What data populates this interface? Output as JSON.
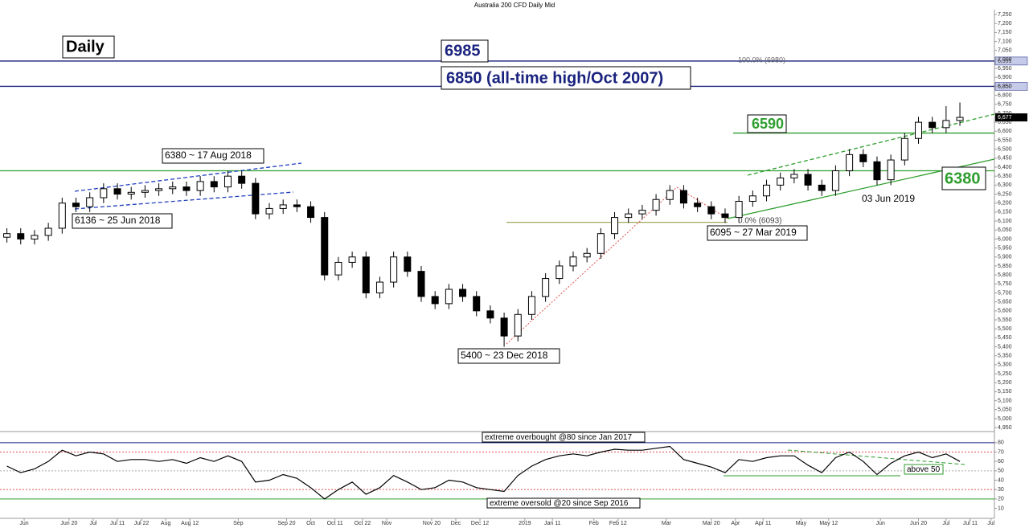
{
  "chart_data": [
    {
      "type": "candlestick",
      "title": "Australia 200 CFD Daily Mid",
      "x": [
        2,
        6,
        10,
        14,
        18,
        22,
        26,
        30,
        34,
        38,
        42,
        46,
        50,
        54,
        58,
        62,
        66,
        70,
        74,
        78,
        82,
        86,
        90,
        94,
        98,
        102,
        106,
        110,
        114,
        118,
        122,
        126,
        130,
        134,
        138,
        142,
        146,
        150,
        154,
        158,
        162,
        166,
        170,
        174,
        178,
        182,
        186,
        190,
        194,
        198,
        202,
        206,
        210,
        214,
        218,
        222,
        226,
        230,
        234,
        238,
        242,
        246,
        250,
        254,
        258,
        262,
        266,
        270,
        274,
        278
      ],
      "open": [
        6010,
        6030,
        6000,
        6020,
        6060,
        6200,
        6180,
        6230,
        6280,
        6250,
        6260,
        6270,
        6280,
        6290,
        6270,
        6320,
        6290,
        6350,
        6310,
        6140,
        6170,
        6190,
        6180,
        6120,
        5800,
        5870,
        5900,
        5700,
        5760,
        5900,
        5820,
        5680,
        5640,
        5720,
        5680,
        5600,
        5560,
        5460,
        5580,
        5680,
        5780,
        5850,
        5900,
        5920,
        6030,
        6120,
        6140,
        6160,
        6220,
        6270,
        6200,
        6180,
        6140,
        6120,
        6210,
        6240,
        6300,
        6340,
        6360,
        6300,
        6270,
        6380,
        6470,
        6430,
        6330,
        6440,
        6560,
        6650,
        6620,
        6660
      ],
      "high": [
        6060,
        6060,
        6050,
        6090,
        6230,
        6230,
        6260,
        6310,
        6310,
        6290,
        6300,
        6310,
        6320,
        6320,
        6350,
        6350,
        6380,
        6380,
        6340,
        6200,
        6220,
        6220,
        6210,
        6150,
        5900,
        5930,
        5930,
        5790,
        5930,
        5930,
        5850,
        5710,
        5750,
        5750,
        5710,
        5630,
        5590,
        5610,
        5710,
        5810,
        5880,
        5930,
        5950,
        6060,
        6150,
        6170,
        6190,
        6250,
        6300,
        6300,
        6230,
        6210,
        6170,
        6240,
        6270,
        6330,
        6370,
        6390,
        6390,
        6330,
        6410,
        6500,
        6500,
        6460,
        6470,
        6590,
        6680,
        6680,
        6740,
        6760
      ],
      "low": [
        5980,
        5970,
        5970,
        5990,
        6030,
        6150,
        6150,
        6200,
        6220,
        6220,
        6230,
        6240,
        6250,
        6240,
        6240,
        6260,
        6260,
        6280,
        6110,
        6110,
        6140,
        6150,
        6090,
        5770,
        5770,
        5840,
        5670,
        5670,
        5730,
        5790,
        5650,
        5610,
        5610,
        5650,
        5570,
        5530,
        5400,
        5430,
        5550,
        5650,
        5750,
        5820,
        5870,
        5890,
        6000,
        6090,
        6110,
        6130,
        6190,
        6170,
        6150,
        6110,
        6090,
        6090,
        6180,
        6210,
        6270,
        6310,
        6270,
        6240,
        6240,
        6350,
        6400,
        6300,
        6300,
        6410,
        6530,
        6590,
        6590,
        6630
      ],
      "close": [
        6030,
        6000,
        6020,
        6060,
        6200,
        6180,
        6230,
        6280,
        6250,
        6260,
        6270,
        6280,
        6290,
        6270,
        6320,
        6290,
        6350,
        6310,
        6140,
        6170,
        6190,
        6180,
        6120,
        5800,
        5870,
        5900,
        5700,
        5760,
        5900,
        5820,
        5680,
        5640,
        5720,
        5680,
        5600,
        5560,
        5460,
        5580,
        5680,
        5780,
        5850,
        5900,
        5920,
        6030,
        6120,
        6140,
        6160,
        6220,
        6270,
        6200,
        6180,
        6140,
        6120,
        6210,
        6240,
        6300,
        6340,
        6360,
        6300,
        6270,
        6380,
        6470,
        6430,
        6330,
        6440,
        6560,
        6650,
        6620,
        6660,
        6677
      ],
      "xlim": [
        0,
        288
      ],
      "xticks": [
        {
          "value": 7,
          "label": "Jun"
        },
        {
          "value": 20,
          "label": "Jun 20"
        },
        {
          "value": 27,
          "label": "Jul"
        },
        {
          "value": 34,
          "label": "Jul 11"
        },
        {
          "value": 41,
          "label": "Jul 22"
        },
        {
          "value": 48,
          "label": "Aug"
        },
        {
          "value": 55,
          "label": "Aug 12"
        },
        {
          "value": 69,
          "label": "Sep"
        },
        {
          "value": 83,
          "label": "Sep 20"
        },
        {
          "value": 90,
          "label": "Oct"
        },
        {
          "value": 97,
          "label": "Oct 11"
        },
        {
          "value": 105,
          "label": "Oct 22"
        },
        {
          "value": 112,
          "label": "Nov"
        },
        {
          "value": 125,
          "label": "Nov 20"
        },
        {
          "value": 132,
          "label": "Dec"
        },
        {
          "value": 139,
          "label": "Dec 12"
        },
        {
          "value": 152,
          "label": "2019"
        },
        {
          "value": 160,
          "label": "Jan 11"
        },
        {
          "value": 172,
          "label": "Feb"
        },
        {
          "value": 179,
          "label": "Feb 12"
        },
        {
          "value": 193,
          "label": "Mar"
        },
        {
          "value": 206,
          "label": "Mar 20"
        },
        {
          "value": 213,
          "label": "Apr"
        },
        {
          "value": 221,
          "label": "Apr 11"
        },
        {
          "value": 232,
          "label": "May"
        },
        {
          "value": 240,
          "label": "May 12"
        },
        {
          "value": 255,
          "label": "Jun"
        },
        {
          "value": 266,
          "label": "Jun 20"
        },
        {
          "value": 274,
          "label": "Jul"
        },
        {
          "value": 281,
          "label": "Jul 11"
        },
        {
          "value": 287,
          "label": "Jul"
        }
      ],
      "ylim": [
        4928,
        7277
      ],
      "yticks": [
        {
          "value": 4950,
          "label": "4,950"
        },
        {
          "value": 5000,
          "label": "5,000"
        },
        {
          "value": 5050,
          "label": "5,050"
        },
        {
          "value": 5100,
          "label": "5,100"
        },
        {
          "value": 5150,
          "label": "5,150"
        },
        {
          "value": 5200,
          "label": "5,200"
        },
        {
          "value": 5250,
          "label": "5,250"
        },
        {
          "value": 5300,
          "label": "5,300"
        },
        {
          "value": 5350,
          "label": "5,350"
        },
        {
          "value": 5400,
          "label": "5,400"
        },
        {
          "value": 5450,
          "label": "5,450"
        },
        {
          "value": 5500,
          "label": "5,500"
        },
        {
          "value": 5550,
          "label": "5,550"
        },
        {
          "value": 5600,
          "label": "5,600"
        },
        {
          "value": 5650,
          "label": "5,650"
        },
        {
          "value": 5700,
          "label": "5,700"
        },
        {
          "value": 5750,
          "label": "5,750"
        },
        {
          "value": 5800,
          "label": "5,800"
        },
        {
          "value": 5850,
          "label": "5,850"
        },
        {
          "value": 5900,
          "label": "5,900"
        },
        {
          "value": 5950,
          "label": "5,950"
        },
        {
          "value": 6000,
          "label": "6,000"
        },
        {
          "value": 6050,
          "label": "6,050"
        },
        {
          "value": 6100,
          "label": "6,100"
        },
        {
          "value": 6150,
          "label": "6,150"
        },
        {
          "value": 6200,
          "label": "6,200"
        },
        {
          "value": 6250,
          "label": "6,250"
        },
        {
          "value": 6300,
          "label": "6,300"
        },
        {
          "value": 6350,
          "label": "6,350"
        },
        {
          "value": 6400,
          "label": "6,400"
        },
        {
          "value": 6450,
          "label": "6,450"
        },
        {
          "value": 6500,
          "label": "6,500"
        },
        {
          "value": 6550,
          "label": "6,550"
        },
        {
          "value": 6600,
          "label": "6,600"
        },
        {
          "value": 6650,
          "label": "6,650"
        },
        {
          "value": 6700,
          "label": "6,700"
        },
        {
          "value": 6750,
          "label": "6,750"
        },
        {
          "value": 6800,
          "label": "6,800"
        },
        {
          "value": 6850,
          "label": "6,850"
        },
        {
          "value": 6900,
          "label": "6,900"
        },
        {
          "value": 6950,
          "label": "6,950"
        },
        {
          "value": 7000,
          "label": "7,000"
        },
        {
          "value": 7050,
          "label": "7,050"
        },
        {
          "value": 7100,
          "label": "7,100"
        },
        {
          "value": 7150,
          "label": "7,150"
        },
        {
          "value": 7200,
          "label": "7,200"
        },
        {
          "value": 7250,
          "label": "7,250"
        }
      ],
      "levels": [
        {
          "value": 6991,
          "label": "6,991",
          "color": "#1a237e"
        },
        {
          "value": 6850,
          "label": "6,850",
          "color": "#1a237e"
        },
        {
          "value": 6590,
          "color": "#2e9e2e"
        },
        {
          "value": 6380,
          "color": "#2e9e2e"
        },
        {
          "value": 6093,
          "color": "#a0a85a"
        }
      ],
      "last_price": {
        "value": 6677,
        "label": "6,677"
      },
      "up_color": "#ffffff",
      "down_color": "#000000",
      "annotations": [
        "Daily",
        "6985",
        "6850 (all-time high/Oct 2007)",
        "100.0% (6980)",
        "6590",
        "6380",
        "6380 ~ 17 Aug 2018",
        "6136 ~ 25 Jun 2018",
        "5400 ~ 23 Dec 2018",
        "6095 ~ 27 Mar 2019",
        "0.0% (6093)",
        "03 Jun 2019"
      ]
    },
    {
      "type": "line",
      "x": [
        2,
        6,
        10,
        14,
        18,
        22,
        26,
        30,
        34,
        38,
        42,
        46,
        50,
        54,
        58,
        62,
        66,
        70,
        74,
        78,
        82,
        86,
        90,
        94,
        98,
        102,
        106,
        110,
        114,
        118,
        122,
        126,
        130,
        134,
        138,
        142,
        146,
        150,
        154,
        158,
        162,
        166,
        170,
        174,
        178,
        182,
        186,
        190,
        194,
        198,
        202,
        206,
        210,
        214,
        218,
        222,
        226,
        230,
        234,
        238,
        242,
        246,
        250,
        254,
        258,
        262,
        266,
        270,
        274,
        278
      ],
      "values": [
        55,
        48,
        52,
        60,
        72,
        66,
        70,
        68,
        60,
        62,
        62,
        60,
        62,
        58,
        64,
        60,
        66,
        60,
        38,
        40,
        46,
        42,
        32,
        20,
        30,
        38,
        25,
        32,
        45,
        38,
        30,
        32,
        40,
        38,
        32,
        30,
        28,
        45,
        55,
        62,
        66,
        68,
        66,
        70,
        73,
        72,
        72,
        74,
        76,
        62,
        58,
        54,
        48,
        62,
        60,
        64,
        66,
        66,
        56,
        48,
        64,
        70,
        60,
        46,
        58,
        66,
        70,
        64,
        68,
        60
      ],
      "color": "#000000",
      "xlim": [
        0,
        288
      ],
      "ylim": [
        1,
        91
      ],
      "yticks": [
        10,
        20,
        30,
        40,
        50,
        60,
        70,
        80
      ],
      "levels": [
        {
          "value": 80,
          "color": "#1a237e"
        },
        {
          "value": 70,
          "color": "#e05050"
        },
        {
          "value": 50,
          "color": "#aaaaaa"
        },
        {
          "value": 30,
          "color": "#e05050"
        },
        {
          "value": 20,
          "color": "#2e9e2e"
        }
      ],
      "annotations": [
        "extreme overbought @80 since Jan 2017",
        "extreme oversold @20 since Sep 2016",
        "above 50"
      ]
    }
  ]
}
